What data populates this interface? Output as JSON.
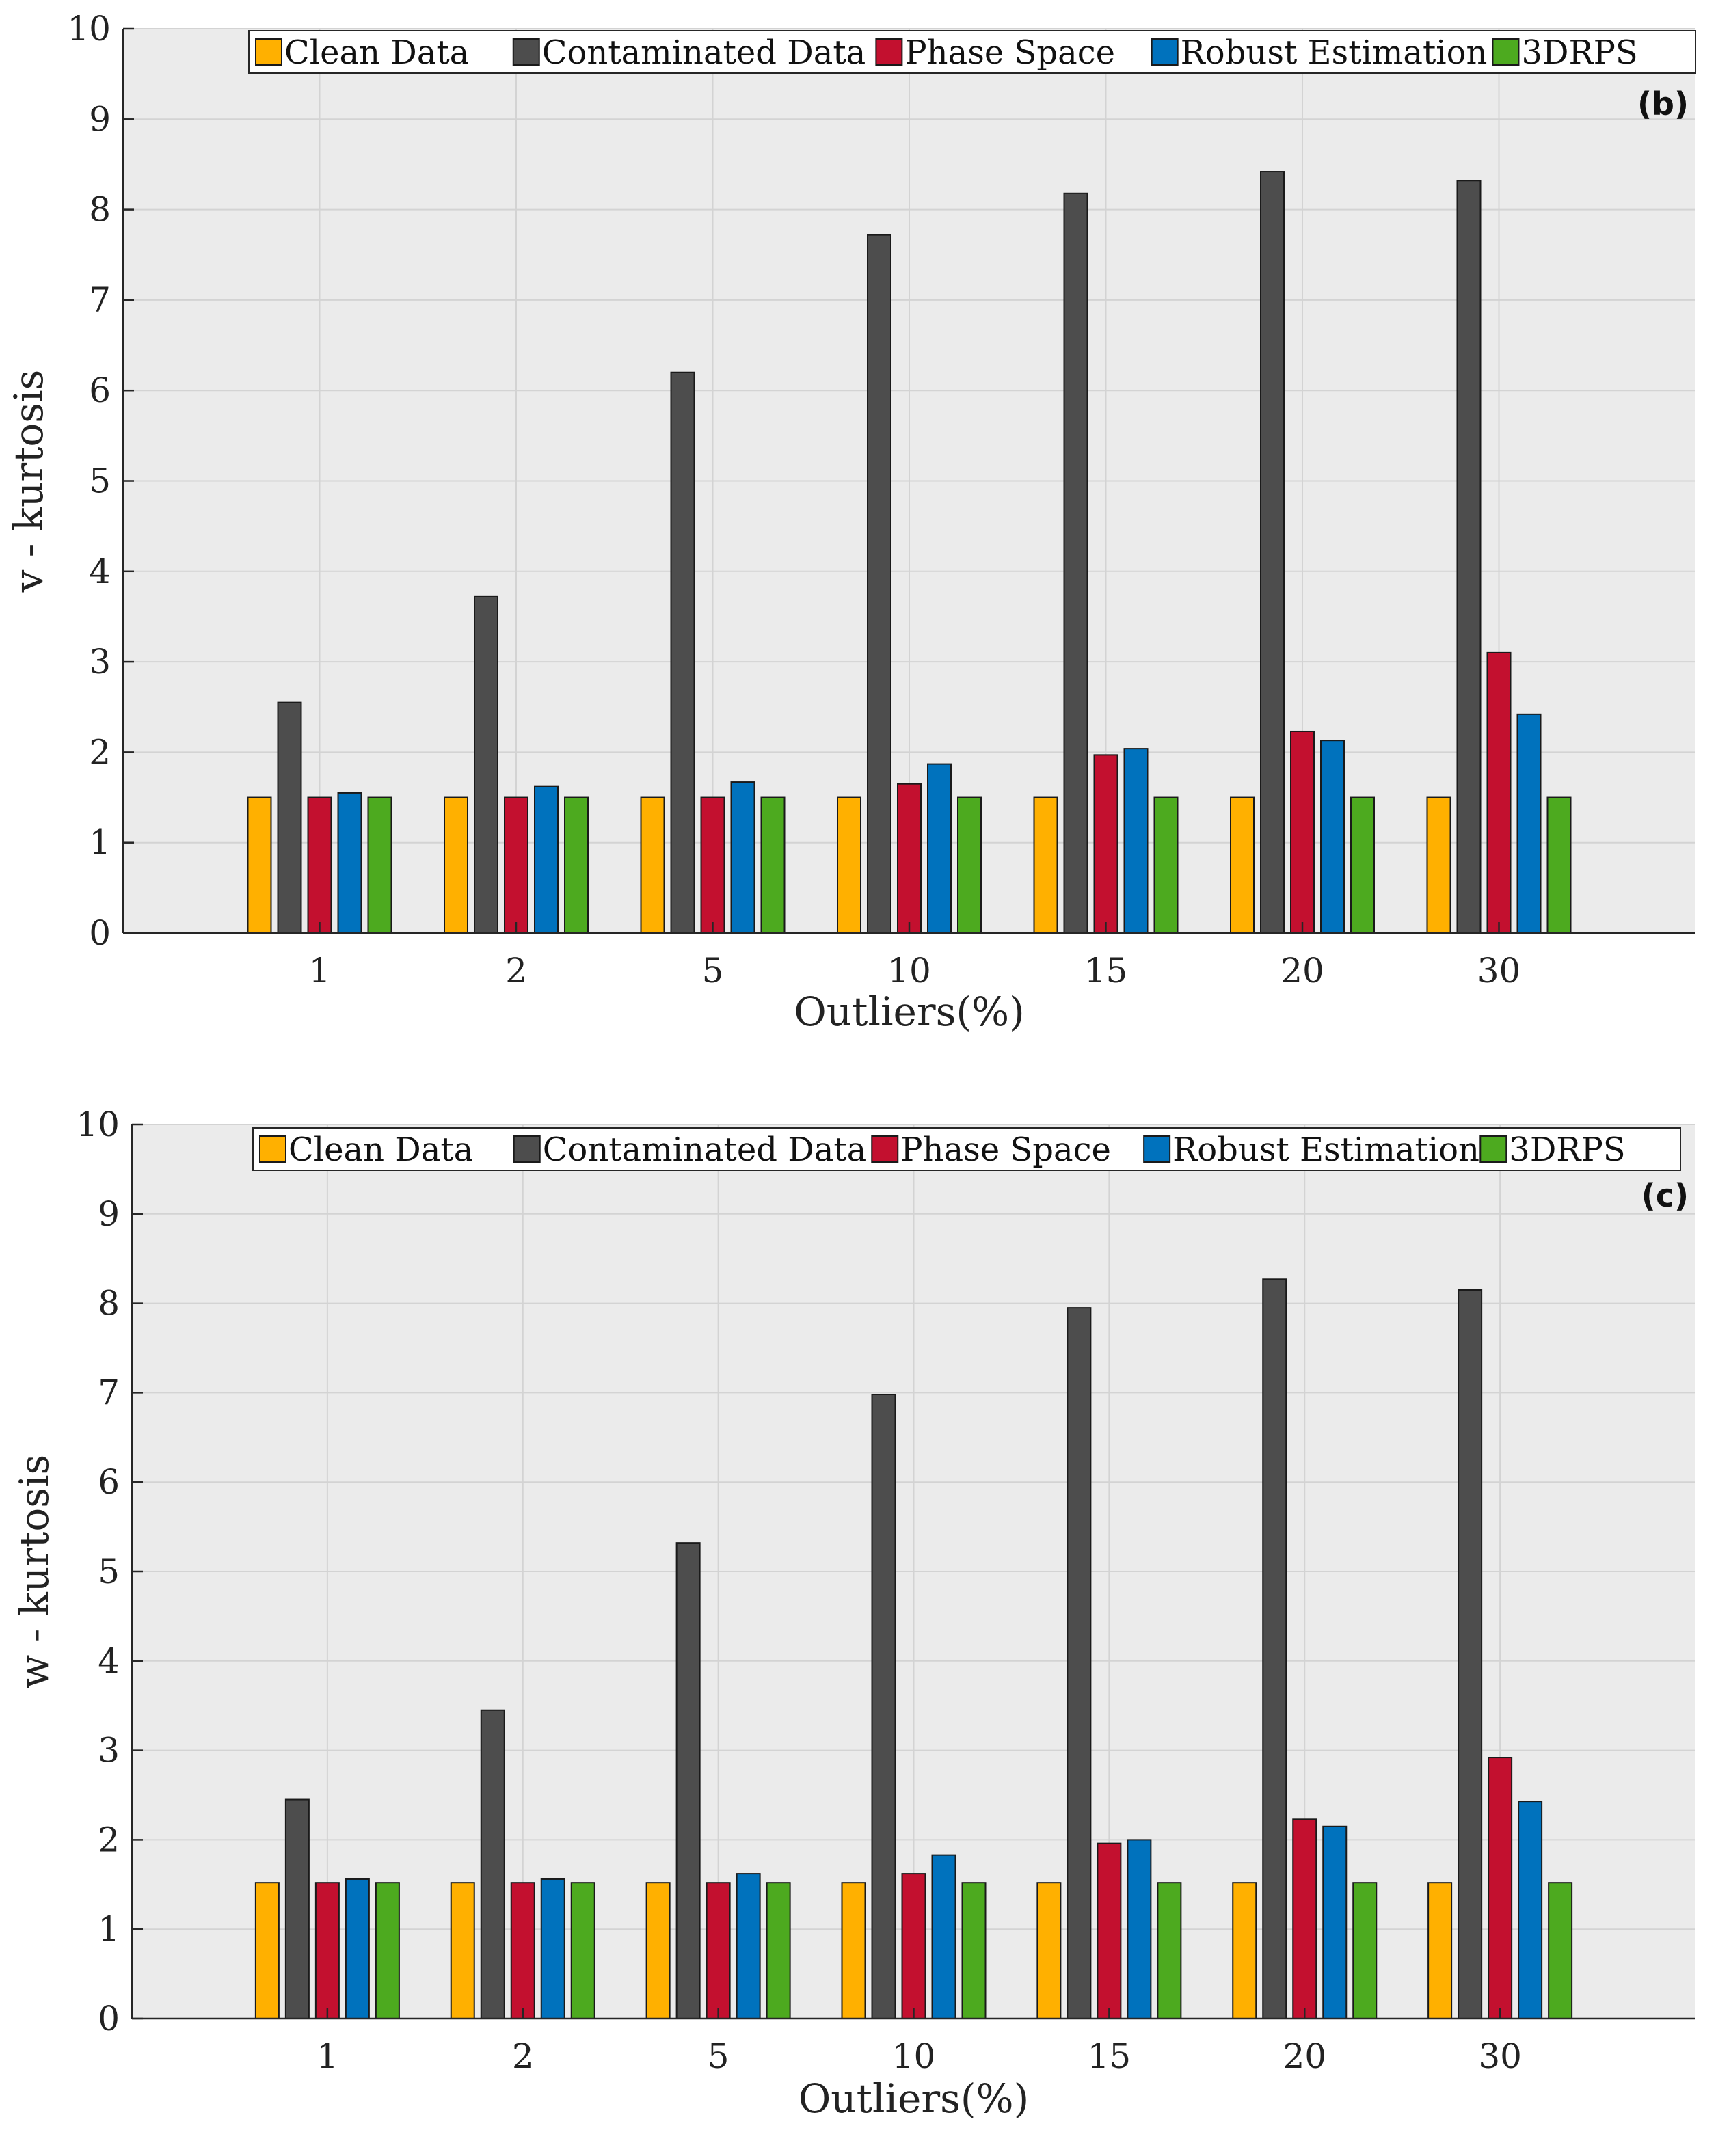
{
  "chart_data": [
    {
      "type": "bar",
      "panel_label": "(b)",
      "xlabel": "Outliers(%)",
      "ylabel": "v - kurtosis",
      "ylim": [
        0,
        10
      ],
      "yticks": [
        "0",
        "1",
        "2",
        "3",
        "4",
        "5",
        "6",
        "7",
        "8",
        "9",
        "10"
      ],
      "grid": true,
      "legend_position": "top-right",
      "categories": [
        "1",
        "2",
        "5",
        "10",
        "15",
        "20",
        "30"
      ],
      "series": [
        {
          "name": "Clean Data",
          "color": "#FFB000",
          "values": [
            1.5,
            1.5,
            1.5,
            1.5,
            1.5,
            1.5,
            1.5
          ]
        },
        {
          "name": "Contaminated Data",
          "color": "#4D4D4D",
          "values": [
            2.55,
            3.72,
            6.2,
            7.72,
            8.18,
            8.42,
            8.32
          ]
        },
        {
          "name": "Phase Space",
          "color": "#C3102F",
          "values": [
            1.5,
            1.5,
            1.5,
            1.65,
            1.97,
            2.23,
            3.1
          ]
        },
        {
          "name": "Robust Estimation",
          "color": "#0072BD",
          "values": [
            1.55,
            1.62,
            1.67,
            1.87,
            2.04,
            2.13,
            2.42
          ]
        },
        {
          "name": "3DRPS",
          "color": "#4DAA1F",
          "values": [
            1.5,
            1.5,
            1.5,
            1.5,
            1.5,
            1.5,
            1.5
          ]
        }
      ]
    },
    {
      "type": "bar",
      "panel_label": "(c)",
      "xlabel": "Outliers(%)",
      "ylabel": "w - kurtosis",
      "ylim": [
        0,
        10
      ],
      "yticks": [
        "0",
        "1",
        "2",
        "3",
        "4",
        "5",
        "6",
        "7",
        "8",
        "9",
        "10"
      ],
      "grid": true,
      "legend_position": "top-right",
      "categories": [
        "1",
        "2",
        "5",
        "10",
        "15",
        "20",
        "30"
      ],
      "series": [
        {
          "name": "Clean Data",
          "color": "#FFB000",
          "values": [
            1.52,
            1.52,
            1.52,
            1.52,
            1.52,
            1.52,
            1.52
          ]
        },
        {
          "name": "Contaminated Data",
          "color": "#4D4D4D",
          "values": [
            2.45,
            3.45,
            5.32,
            6.98,
            7.95,
            8.27,
            8.15
          ]
        },
        {
          "name": "Phase Space",
          "color": "#C3102F",
          "values": [
            1.52,
            1.52,
            1.52,
            1.62,
            1.96,
            2.23,
            2.92
          ]
        },
        {
          "name": "Robust Estimation",
          "color": "#0072BD",
          "values": [
            1.56,
            1.56,
            1.62,
            1.83,
            2.0,
            2.15,
            2.43
          ]
        },
        {
          "name": "3DRPS",
          "color": "#4DAA1F",
          "values": [
            1.52,
            1.52,
            1.52,
            1.52,
            1.52,
            1.52,
            1.52
          ]
        }
      ]
    }
  ]
}
